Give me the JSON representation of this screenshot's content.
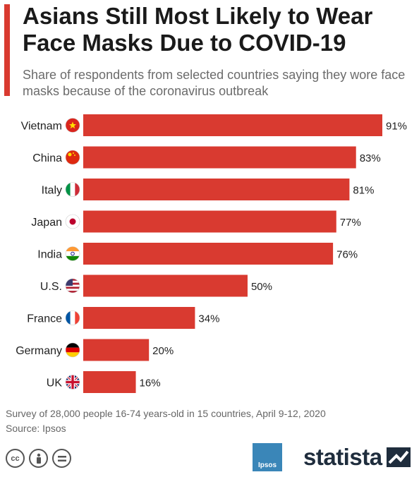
{
  "title": "Asians Still Most Likely to Wear Face Masks Due to COVID-19",
  "subtitle": "Share of respondents from selected countries saying they wore face masks because of the coronavirus outbreak",
  "footer": {
    "note": "Survey of 28,000 people 16-74 years-old in 15 countries, April 9-12, 2020",
    "source": "Source: Ipsos"
  },
  "logos": {
    "ipsos": "Ipsos",
    "statista": "statista"
  },
  "colors": {
    "bar": "#d93a30",
    "accent": "#d93a30"
  },
  "chart_data": {
    "type": "bar",
    "orientation": "horizontal",
    "categories": [
      "Vietnam",
      "China",
      "Italy",
      "Japan",
      "India",
      "U.S.",
      "France",
      "Germany",
      "UK"
    ],
    "values": [
      91,
      83,
      81,
      77,
      76,
      50,
      34,
      20,
      16
    ],
    "value_labels": [
      "91%",
      "83%",
      "81%",
      "77%",
      "76%",
      "50%",
      "34%",
      "20%",
      "16%"
    ],
    "flags": [
      "vietnam-flag-icon",
      "china-flag-icon",
      "italy-flag-icon",
      "japan-flag-icon",
      "india-flag-icon",
      "us-flag-icon",
      "france-flag-icon",
      "germany-flag-icon",
      "uk-flag-icon"
    ],
    "xlim": [
      0,
      91
    ],
    "grid": false,
    "legend": "none"
  }
}
